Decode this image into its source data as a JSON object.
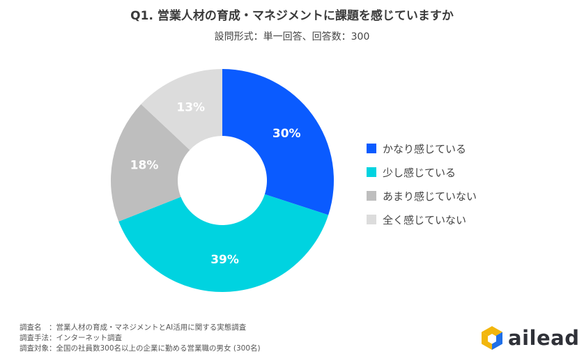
{
  "chart_data": {
    "type": "pie",
    "donut": true,
    "title": "Q1. 営業人材の育成・マネジメントに課題を感じていますか",
    "subtitle": "設問形式：単一回答、回答数：300",
    "slices": [
      {
        "label": "かなり感じている",
        "value": 30,
        "value_label": "30%",
        "color": "#0a5bff"
      },
      {
        "label": "少し感じている",
        "value": 39,
        "value_label": "39%",
        "color": "#00d3e0"
      },
      {
        "label": "あまり感じていない",
        "value": 18,
        "value_label": "18%",
        "color": "#bebebe"
      },
      {
        "label": "全く感じていない",
        "value": 13,
        "value_label": "13%",
        "color": "#dcdcdc"
      }
    ],
    "legend_position": "right"
  },
  "footnotes": [
    "調査名　：営業人材の育成・マネジメントとAI活用に関する実態調査",
    "調査手法：インターネット調査",
    "調査対象：全国の社員数300名以上の企業に勤める営業職の男女 (300名)"
  ],
  "logo": {
    "text": "ailead",
    "colors": {
      "gold": "#f2b60d",
      "blue": "#1f6fe8",
      "dark": "#2f3138"
    }
  }
}
